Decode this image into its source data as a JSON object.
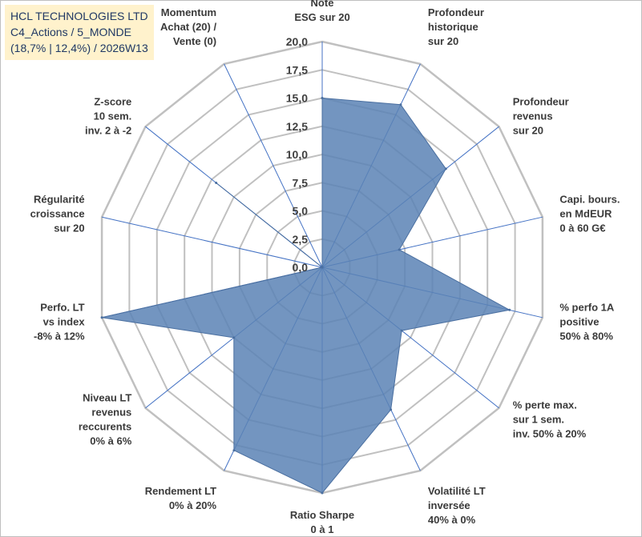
{
  "title_box": {
    "line1": "HCL TECHNOLOGIES LTD",
    "line2": "C4_Actions / 5_MONDE",
    "line3": "(18,7% | 12,4%) / 2026W13"
  },
  "colors": {
    "grid": "#c0c0c0",
    "spoke": "#4472c4",
    "fill": "#5b82b5",
    "fill_stroke": "#4a6fa0",
    "title_bg": "#fff2cc",
    "title_text": "#1f3864"
  },
  "chart_data": {
    "type": "radar",
    "rmax": 20,
    "ticks": [
      0,
      2.5,
      5,
      7.5,
      10,
      12.5,
      15,
      17.5,
      20
    ],
    "tick_labels": [
      "0,0",
      "2,5",
      "5,0",
      "7,5",
      "10,0",
      "12,5",
      "15,0",
      "17,5",
      "20,0"
    ],
    "categories": [
      [
        "Note",
        "ESG sur 20"
      ],
      [
        "Profondeur",
        "historique",
        "sur 20"
      ],
      [
        "Profondeur",
        "revenus",
        "sur 20"
      ],
      [
        "Capi. bours.",
        "en MdEUR",
        "0 à 60 G€"
      ],
      [
        "% perfo 1A",
        "positive",
        "50% à 80%"
      ],
      [
        "% perte max.",
        "sur 1 sem.",
        "inv. 50% à 20%"
      ],
      [
        "Volatilité LT",
        "inversée",
        "40% à 0%"
      ],
      [
        "Ratio Sharpe",
        "0 à 1"
      ],
      [
        "Rendement LT",
        "0% à 20%"
      ],
      [
        "Niveau LT",
        "revenus",
        "reccurents",
        "0% à 6%"
      ],
      [
        "Perfo. LT",
        "vs index",
        "-8% à 12%"
      ],
      [
        "Régularité",
        "croissance",
        "sur 20"
      ],
      [
        "Z-score",
        "10 sem.",
        "inv. 2 à -2"
      ],
      [
        "Momentum",
        "Achat (20) /",
        "Vente (0)"
      ]
    ],
    "series": [
      {
        "name": "HCL TECHNOLOGIES LTD",
        "values": [
          15,
          16,
          14,
          7,
          17,
          9,
          14,
          20,
          18,
          10,
          20,
          0,
          12,
          0
        ]
      }
    ]
  }
}
